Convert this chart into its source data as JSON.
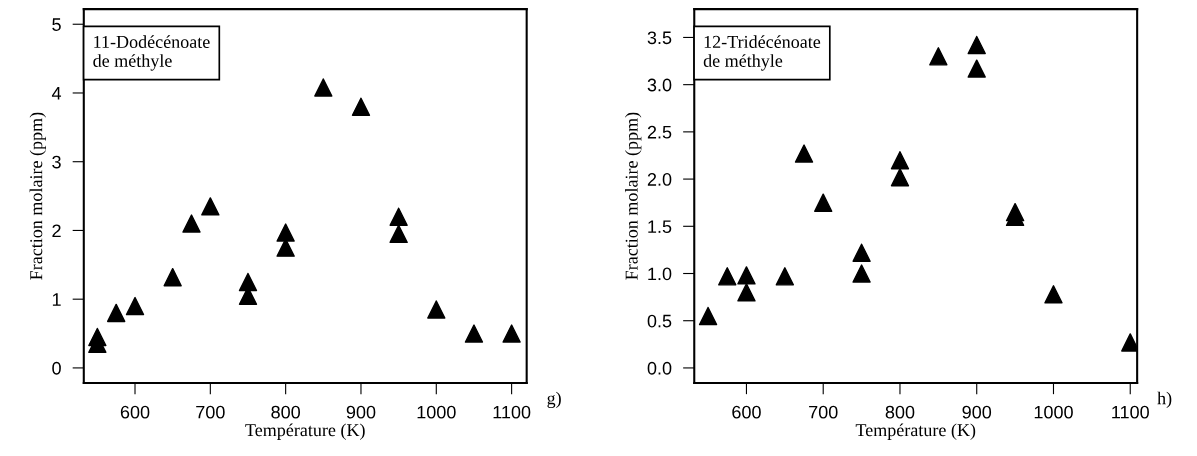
{
  "chart_data": [
    {
      "type": "scatter",
      "xlabel": "Température (K)",
      "ylabel": "Fraction molaire (ppm)",
      "marker": "triangle",
      "annotations": [
        "11-Dodécénoate\nde méthyle",
        "g)"
      ],
      "xlim": [
        532,
        1120
      ],
      "xticks": [
        600,
        700,
        800,
        900,
        1000,
        1100
      ],
      "ylim": [
        -0.22,
        5.22
      ],
      "yticks": [
        0,
        1,
        2,
        3,
        4,
        5
      ],
      "grid": false,
      "legend": false,
      "series": [
        {
          "color": "#000000",
          "x": [
            550,
            550,
            575,
            600,
            650,
            675,
            700,
            750,
            750,
            800,
            800,
            850,
            900,
            950,
            950,
            1000,
            1050,
            1100
          ],
          "values": [
            0.45,
            0.35,
            0.8,
            0.9,
            1.32,
            2.1,
            2.35,
            1.25,
            1.05,
            1.97,
            1.75,
            4.08,
            3.8,
            2.2,
            1.95,
            0.85,
            0.5,
            0.5
          ]
        }
      ]
    },
    {
      "type": "scatter",
      "xlabel": "Température (K)",
      "ylabel": "Fraction molaire (ppm)",
      "marker": "triangle",
      "annotations": [
        "12-Tridécénoate\nde méthyle",
        "h)"
      ],
      "xlim": [
        532,
        1109
      ],
      "xticks": [
        600,
        700,
        800,
        900,
        1000,
        1100
      ],
      "ylim": [
        -0.16,
        3.8
      ],
      "yticks": [
        {
          "value": 0,
          "label": "0.0"
        },
        0.5,
        {
          "value": 1,
          "label": "1.0"
        },
        1.5,
        {
          "value": 2,
          "label": "2.0"
        },
        2.5,
        {
          "value": 3,
          "label": "3.0"
        },
        3.5
      ],
      "grid": false,
      "legend": false,
      "series": [
        {
          "color": "#000000",
          "x": [
            550,
            575,
            600,
            600,
            650,
            675,
            700,
            750,
            750,
            800,
            800,
            850,
            900,
            900,
            950,
            950,
            1000,
            1100
          ],
          "values": [
            0.55,
            0.97,
            0.98,
            0.8,
            0.97,
            2.27,
            1.75,
            1.22,
            1.0,
            2.2,
            2.02,
            3.3,
            3.42,
            3.17,
            1.65,
            1.6,
            0.78,
            0.27
          ]
        }
      ]
    }
  ]
}
